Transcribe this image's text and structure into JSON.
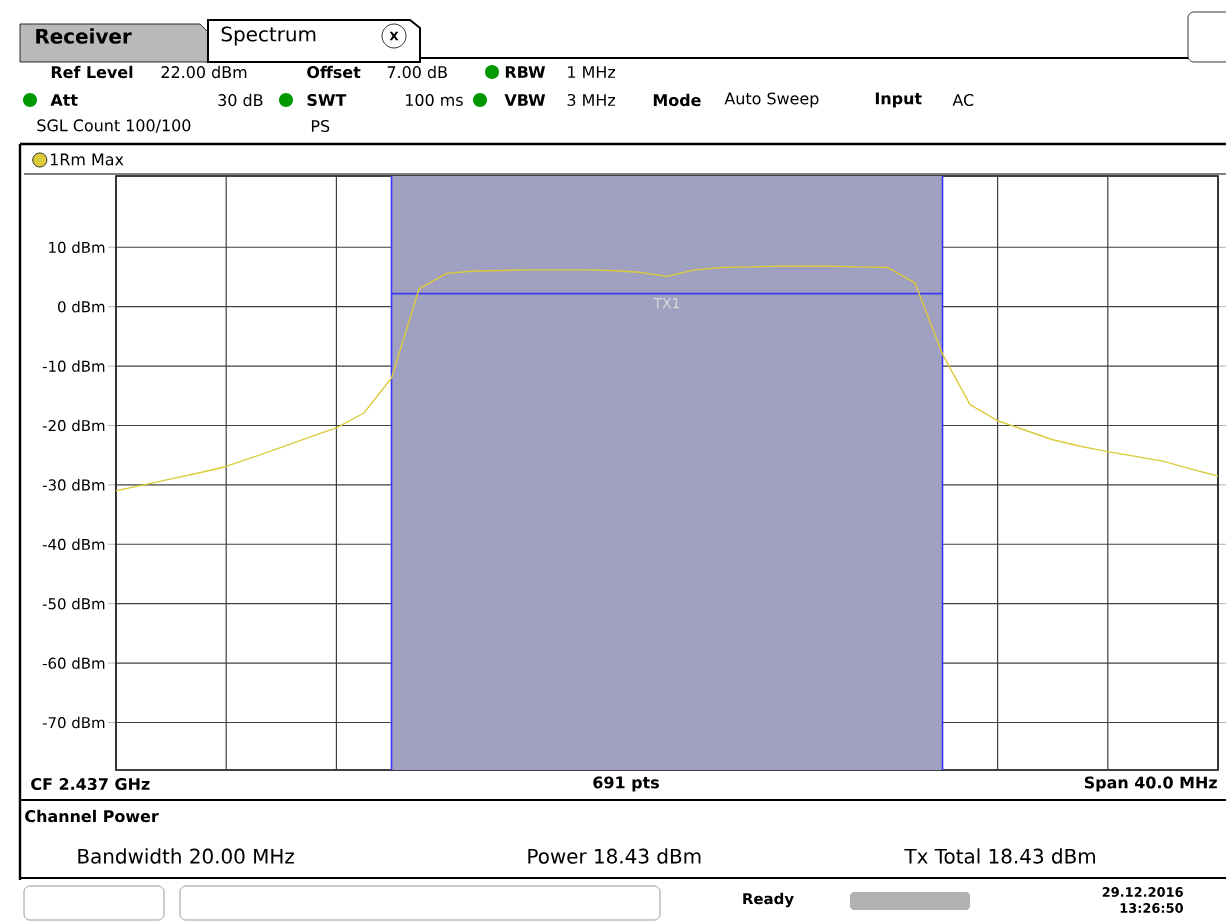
{
  "chart_data": {
    "type": "line",
    "categories": [
      null,
      null,
      null,
      null,
      null,
      null,
      null,
      null,
      null,
      null,
      null,
      null,
      null,
      null,
      null,
      null,
      null,
      null,
      null,
      null,
      null,
      null,
      null,
      null,
      null,
      null,
      null,
      null,
      null,
      null,
      null,
      null,
      null,
      null,
      null,
      null,
      null,
      null,
      null,
      null,
      null
    ],
    "series": [
      {
        "name": "1Rm Max",
        "color": "#dccb3c",
        "values": [
          -31,
          -30,
          -29,
          -28,
          -26.9,
          -25.3,
          -23.7,
          -22,
          -20.4,
          -17.9,
          -12,
          3,
          5.6,
          6.0,
          6.1,
          6.2,
          6.2,
          6.2,
          6.1,
          5.8,
          5.1,
          6.2,
          6.6,
          6.7,
          6.8,
          6.8,
          6.8,
          6.7,
          6.6,
          4,
          -8,
          -16.5,
          -19.2,
          -20.8,
          -22.4,
          -23.5,
          -24.4,
          -25.2,
          -26,
          -27.3,
          -28.5
        ]
      }
    ],
    "ylim": [
      -78,
      22
    ],
    "yticks": [
      {
        "value": -70,
        "label": "-70 dBm"
      },
      {
        "value": -60,
        "label": "-60 dBm"
      },
      {
        "value": -50,
        "label": "-50 dBm"
      },
      {
        "value": -40,
        "label": "-40 dBm"
      },
      {
        "value": -30,
        "label": "-30 dBm"
      },
      {
        "value": -20,
        "label": "-20 dBm"
      },
      {
        "value": -10,
        "label": "-10 dBm"
      },
      {
        "value": 0,
        "label": "0 dBm"
      },
      {
        "value": 10,
        "label": "10 dBm"
      }
    ],
    "grid": true,
    "legend": "top left",
    "ref_lines": [
      {
        "axis": "y",
        "value": 2.2,
        "label": "TX1",
        "color": "#3c3cf0"
      }
    ],
    "annotations": [
      "Receiver",
      "Spectrum",
      "X",
      "Ref Level",
      "22.00 dBm",
      "Offset",
      "7.00 dB",
      "RBW",
      "1 MHz",
      "Att",
      "30 dB",
      "SWT",
      "100 ms",
      "VBW",
      "3 MHz",
      "Mode",
      "Auto Sweep",
      "Input",
      "AC",
      "SGL Count 100/100",
      "PS",
      "CF 2.437 GHz",
      "691 pts",
      "Span 40.0 MHz",
      "Channel Power",
      "Bandwidth  20.00 MHz",
      "Power  18.43 dBm",
      "Tx Total  18.43 dBm",
      "Ready",
      "29.12.2016",
      "13:26:50"
    ]
  }
}
